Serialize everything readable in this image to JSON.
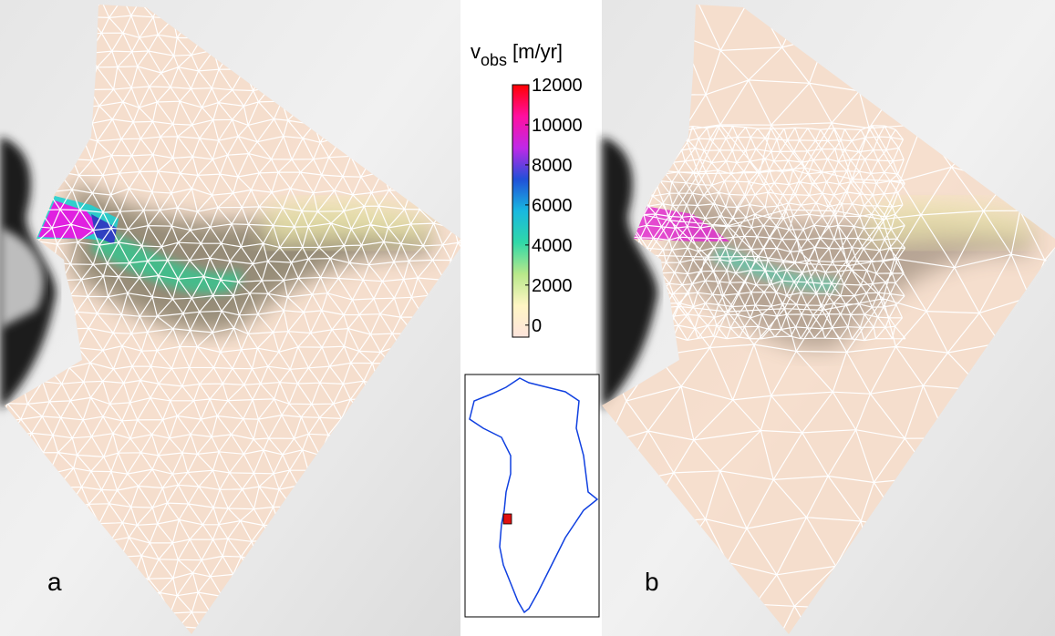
{
  "colorbar": {
    "label": {
      "symbol": "v",
      "subscript": "obs",
      "unit": "[m/yr]"
    },
    "lim": [
      -600,
      12000
    ],
    "ticks": [
      0,
      2000,
      4000,
      6000,
      8000,
      10000,
      12000
    ],
    "colors": [
      "#fde4dc",
      "#fff6c4",
      "#b8e88a",
      "#30d8a8",
      "#18b8e0",
      "#2050d8",
      "#c028e8",
      "#ff10a0",
      "#ff0000"
    ]
  },
  "panels": [
    {
      "label": "a"
    },
    {
      "label": "b"
    }
  ]
}
